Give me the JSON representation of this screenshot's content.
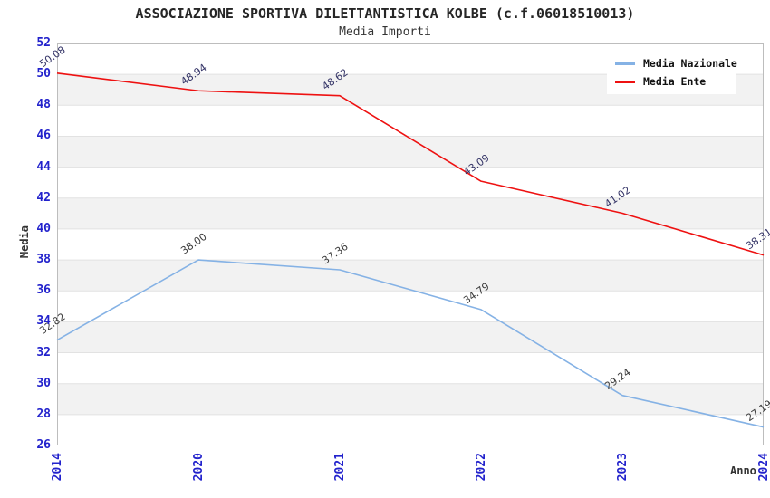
{
  "title": "ASSOCIAZIONE SPORTIVA DILETTANTISTICA KOLBE (c.f.06018510013)",
  "subtitle": "Media Importi",
  "chart_data": {
    "type": "line",
    "categories": [
      "2014",
      "2020",
      "2021",
      "2022",
      "2023",
      "2024"
    ],
    "series": [
      {
        "name": "Media Nazionale",
        "color": "#85b2e5",
        "label_color": "#3a3a3a",
        "values": [
          32.82,
          38.0,
          37.36,
          34.79,
          29.24,
          27.19
        ]
      },
      {
        "name": "Media Ente",
        "color": "#ee1111",
        "label_color": "#333366",
        "values": [
          50.08,
          48.94,
          48.62,
          43.09,
          41.02,
          38.31
        ]
      }
    ],
    "xlabel": "Anno",
    "ylabel": "Media",
    "ylim": [
      26,
      52
    ],
    "ytick_step": 2,
    "yticks": [
      26,
      28,
      30,
      32,
      34,
      36,
      38,
      40,
      42,
      44,
      46,
      48,
      50,
      52
    ],
    "grid": "horizontal-bands",
    "band_color": "#f2f2f2",
    "gridline_color": "#e2e2e2",
    "plot_border_color": "#bdbdbd",
    "tick_label_color": "#2222cc",
    "legend_position": "top-right",
    "value_label_format": "0.00",
    "value_label_rotation_deg": -35
  }
}
